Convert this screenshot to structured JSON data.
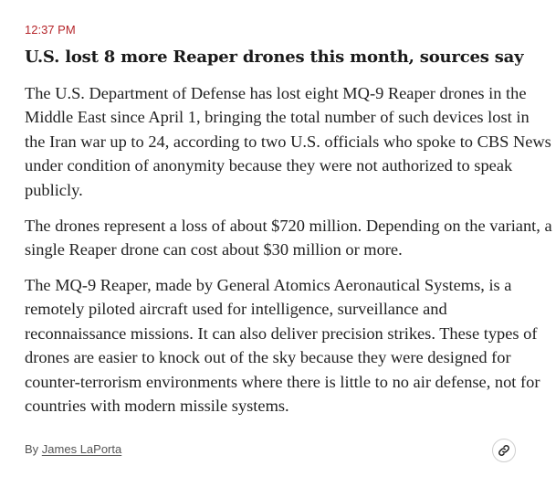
{
  "post": {
    "timestamp": "12:37 PM",
    "headline": "U.S. lost 8 more Reaper drones this month, sources say",
    "paragraphs": [
      "The U.S. Department of Defense has lost eight MQ-9 Reaper drones in the Middle East since April 1, bringing the total number of such devices lost in the Iran war up to 24, according to two U.S. officials who spoke to CBS News under condition of anonymity because they were not authorized to speak publicly.",
      "The drones represent a loss of about $720 million. Depending on the variant, a single Reaper drone can cost about $30 million or more.",
      "The MQ-9 Reaper, made by General Atomics Aeronautical Systems, is a remotely piloted aircraft used for intelligence, surveillance and reconnaissance missions. It can also deliver precision strikes. These types of drones are easier to knock out of the sky because they were designed for counter-terrorism environments where there is little to no air defense, not for countries with modern missile systems."
    ],
    "byline_prefix": "By",
    "author": "James LaPorta"
  },
  "icons": {
    "share_link": "link-icon"
  },
  "colors": {
    "timestamp": "#b5252a",
    "headline": "#1a1a1a",
    "body": "#222222",
    "byline": "#555555"
  }
}
